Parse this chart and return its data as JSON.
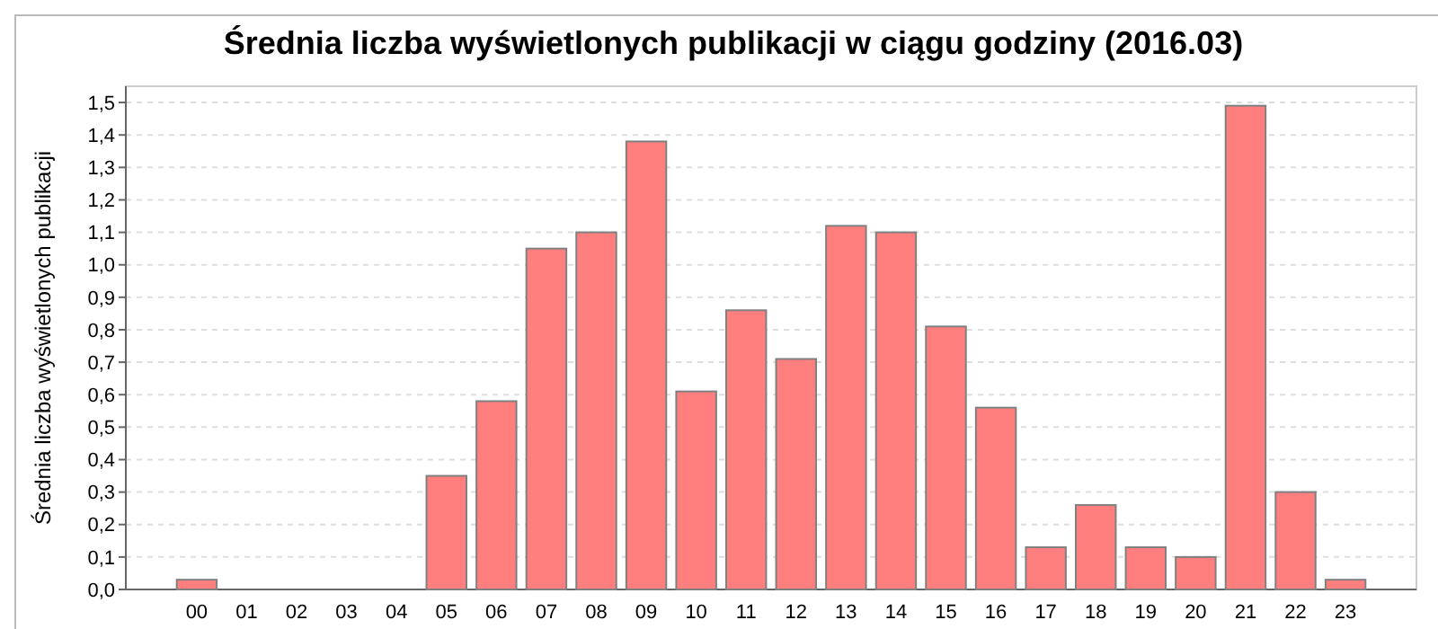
{
  "chart_data": {
    "type": "bar",
    "title": "Średnia liczba wyświetlonych publikacji w ciągu godziny (2016.03)",
    "ylabel": "Średnia liczba wyświetlonych publikacji",
    "categories": [
      "00",
      "01",
      "02",
      "03",
      "04",
      "05",
      "06",
      "07",
      "08",
      "09",
      "10",
      "11",
      "12",
      "13",
      "14",
      "15",
      "16",
      "17",
      "18",
      "19",
      "20",
      "21",
      "22",
      "23"
    ],
    "values": [
      0.03,
      0,
      0,
      0,
      0,
      0.35,
      0.58,
      1.05,
      1.1,
      1.38,
      0.61,
      0.86,
      0.71,
      1.12,
      1.1,
      0.81,
      0.56,
      0.13,
      0.26,
      0.13,
      0.1,
      1.49,
      0.3,
      0.03
    ],
    "color": "#ff7f7f",
    "ylim": [
      0,
      1.55
    ],
    "yticks": [
      {
        "value": 0,
        "label": "0,0"
      },
      {
        "value": 0.1,
        "label": "0,1"
      },
      {
        "value": 0.2,
        "label": "0,2"
      },
      {
        "value": 0.3,
        "label": "0,3"
      },
      {
        "value": 0.4,
        "label": "0,4"
      },
      {
        "value": 0.5,
        "label": "0,5"
      },
      {
        "value": 0.6,
        "label": "0,6"
      },
      {
        "value": 0.7,
        "label": "0,7"
      },
      {
        "value": 0.8,
        "label": "0,8"
      },
      {
        "value": 0.9,
        "label": "0,9"
      },
      {
        "value": 1,
        "label": "1,0"
      },
      {
        "value": 1.1,
        "label": "1,1"
      },
      {
        "value": 1.2,
        "label": "1,2"
      },
      {
        "value": 1.3,
        "label": "1,3"
      },
      {
        "value": 1.4,
        "label": "1,4"
      },
      {
        "value": 1.5,
        "label": "1,5"
      }
    ],
    "grid": "y"
  }
}
